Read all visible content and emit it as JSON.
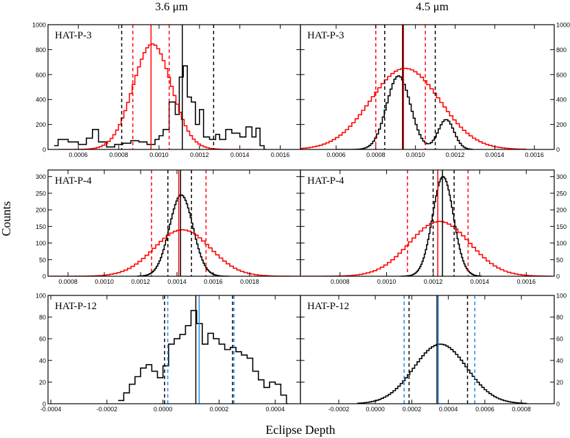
{
  "figure": {
    "column_titles": [
      "3.6 μm",
      "4.5 μm"
    ],
    "ylabel": "Counts",
    "xlabel": "Eclipse Depth"
  },
  "colors": {
    "black": "#000000",
    "red": "#ff0000",
    "blue": "#1e88e5"
  },
  "chart_data": [
    {
      "type": "histogram",
      "planet": "HAT-P-3",
      "band": "3.6 μm",
      "xlim": [
        0.00045,
        0.0017
      ],
      "ylim": [
        0,
        1000
      ],
      "xticks": [
        "0.0006",
        "0.0008",
        "0.0010",
        "0.0012",
        "0.0014",
        "0.0016"
      ],
      "yticks": [
        "0",
        "200",
        "400",
        "600",
        "800",
        "1000"
      ],
      "series": [
        {
          "color": "black",
          "style": "step",
          "x": [
            0.00048,
            0.0005,
            0.00055,
            0.0006,
            0.00064,
            0.00067,
            0.0007,
            0.00074,
            0.00078,
            0.00082,
            0.00086,
            0.0009,
            0.00094,
            0.00098,
            0.001,
            0.00102,
            0.00105,
            0.00108,
            0.0011,
            0.00112,
            0.00114,
            0.00116,
            0.00118,
            0.0012,
            0.00122,
            0.00125,
            0.00128,
            0.0013,
            0.00133,
            0.00136,
            0.0014,
            0.00143,
            0.00146,
            0.00148,
            0.0015,
            0.00152
          ],
          "y": [
            30,
            80,
            60,
            40,
            90,
            160,
            60,
            20,
            40,
            50,
            70,
            60,
            40,
            80,
            110,
            160,
            380,
            280,
            580,
            670,
            420,
            380,
            200,
            320,
            100,
            80,
            120,
            80,
            160,
            130,
            100,
            180,
            100,
            170,
            30,
            0
          ]
        },
        {
          "color": "red",
          "style": "step",
          "gaussian": {
            "mu": 0.00096,
            "sigma": 9.5e-05,
            "peak": 845,
            "range": [
              0.0005,
              0.00145
            ]
          }
        }
      ],
      "vlines": [
        {
          "x": 0.000815,
          "color": "black",
          "style": "dashed"
        },
        {
          "x": 0.001115,
          "color": "black",
          "style": "solid"
        },
        {
          "x": 0.00127,
          "color": "black",
          "style": "dashed"
        },
        {
          "x": 0.00087,
          "color": "red",
          "style": "dashed"
        },
        {
          "x": 0.00096,
          "color": "red",
          "style": "solid"
        },
        {
          "x": 0.00105,
          "color": "red",
          "style": "dashed"
        }
      ]
    },
    {
      "type": "histogram",
      "planet": "HAT-P-3",
      "band": "4.5 μm",
      "xlim": [
        0.00042,
        0.0017
      ],
      "ylim": [
        0,
        1000
      ],
      "xticks": [
        "0.0006",
        "0.0008",
        "0.0010",
        "0.0012",
        "0.0014",
        "0.0016"
      ],
      "yticks": [
        "0",
        "200",
        "400",
        "600",
        "800",
        "1000"
      ],
      "series": [
        {
          "color": "black",
          "style": "step",
          "gaussian_mix": [
            {
              "mu": 0.00091,
              "sigma": 6e-05,
              "peak": 590
            },
            {
              "mu": 0.00115,
              "sigma": 4e-05,
              "peak": 240
            }
          ],
          "range": [
            0.0006,
            0.00128
          ]
        },
        {
          "color": "red",
          "style": "step",
          "gaussian": {
            "mu": 0.00094,
            "sigma": 0.000175,
            "peak": 650,
            "range": [
              0.0004,
              0.00155
            ]
          }
        }
      ],
      "vlines": [
        {
          "x": 0.000845,
          "color": "black",
          "style": "dashed"
        },
        {
          "x": 0.000935,
          "color": "black",
          "style": "solid"
        },
        {
          "x": 0.0011,
          "color": "black",
          "style": "dashed"
        },
        {
          "x": 0.0008,
          "color": "red",
          "style": "dashed"
        },
        {
          "x": 0.00094,
          "color": "red",
          "style": "solid"
        },
        {
          "x": 0.00105,
          "color": "red",
          "style": "dashed"
        }
      ]
    },
    {
      "type": "histogram",
      "planet": "HAT-P-4",
      "band": "3.6 μm",
      "xlim": [
        0.00069,
        0.00208
      ],
      "ylim": [
        0,
        320
      ],
      "xticks": [
        "0.0008",
        "0.0010",
        "0.0012",
        "0.0014",
        "0.0016",
        "0.0018"
      ],
      "yticks": [
        "0",
        "50",
        "100",
        "150",
        "200",
        "250",
        "300"
      ],
      "series": [
        {
          "color": "black",
          "style": "step",
          "gaussian": {
            "mu": 0.00142,
            "sigma": 6.5e-05,
            "peak": 245,
            "range": [
              0.00118,
              0.00168
            ]
          }
        },
        {
          "color": "red",
          "style": "step",
          "gaussian": {
            "mu": 0.00142,
            "sigma": 0.000155,
            "peak": 140,
            "range": [
              0.0007,
              0.00206
            ]
          }
        }
      ],
      "vlines": [
        {
          "x": 0.00135,
          "color": "black",
          "style": "dashed"
        },
        {
          "x": 0.00142,
          "color": "black",
          "style": "solid"
        },
        {
          "x": 0.00148,
          "color": "black",
          "style": "dashed"
        },
        {
          "x": 0.00126,
          "color": "red",
          "style": "dashed"
        },
        {
          "x": 0.00141,
          "color": "red",
          "style": "solid"
        },
        {
          "x": 0.00156,
          "color": "red",
          "style": "dashed"
        }
      ]
    },
    {
      "type": "histogram",
      "planet": "HAT-P-4",
      "band": "4.5 μm",
      "xlim": [
        0.00063,
        0.00172
      ],
      "ylim": [
        0,
        320
      ],
      "xticks": [
        "0.0008",
        "0.0010",
        "0.0012",
        "0.0014",
        "0.0016"
      ],
      "yticks": [
        "0",
        "50",
        "100",
        "150",
        "200",
        "250",
        "300"
      ],
      "series": [
        {
          "color": "black",
          "style": "step",
          "gaussian": {
            "mu": 0.00124,
            "sigma": 4.5e-05,
            "peak": 300,
            "range": [
              0.00106,
              0.0014
            ]
          }
        },
        {
          "color": "red",
          "style": "step",
          "gaussian": {
            "mu": 0.00122,
            "sigma": 0.00013,
            "peak": 165,
            "range": [
              0.00064,
              0.0017
            ]
          }
        }
      ],
      "vlines": [
        {
          "x": 0.0012,
          "color": "black",
          "style": "dashed"
        },
        {
          "x": 0.00124,
          "color": "black",
          "style": "solid"
        },
        {
          "x": 0.00129,
          "color": "black",
          "style": "dashed"
        },
        {
          "x": 0.00109,
          "color": "red",
          "style": "dashed"
        },
        {
          "x": 0.00122,
          "color": "red",
          "style": "solid"
        },
        {
          "x": 0.00135,
          "color": "red",
          "style": "dashed"
        }
      ]
    },
    {
      "type": "histogram",
      "planet": "HAT-P-12",
      "band": "3.6 μm",
      "xlim": [
        -0.00041,
        0.00049
      ],
      "ylim": [
        0,
        100
      ],
      "xticks": [
        "-0.0004",
        "-0.0002",
        "0.0000",
        "0.0002",
        "0.0004"
      ],
      "yticks": [
        "0",
        "20",
        "40",
        "60",
        "80",
        "100"
      ],
      "series": [
        {
          "color": "black",
          "style": "step",
          "x": [
            -0.00016,
            -0.00014,
            -0.00012,
            -0.0001,
            -8e-05,
            -6e-05,
            -4e-05,
            -2e-05,
            0,
            2e-05,
            4e-05,
            6e-05,
            8e-05,
            0.0001,
            0.00012,
            0.00014,
            0.00016,
            0.00018,
            0.0002,
            0.00022,
            0.00024,
            0.00026,
            0.00028,
            0.0003,
            0.00032,
            0.00034,
            0.00036,
            0.00038,
            0.0004,
            0.00042,
            0.00044
          ],
          "y": [
            3,
            10,
            18,
            25,
            33,
            36,
            30,
            24,
            35,
            55,
            60,
            64,
            72,
            86,
            74,
            55,
            65,
            60,
            55,
            50,
            52,
            48,
            45,
            42,
            30,
            22,
            15,
            20,
            18,
            8,
            0
          ]
        }
      ],
      "vlines": [
        {
          "x": 5.5e-06,
          "color": "black",
          "style": "dashed"
        },
        {
          "x": 0.000117,
          "color": "black",
          "style": "solid"
        },
        {
          "x": 0.000248,
          "color": "black",
          "style": "dashed"
        },
        {
          "x": 1.7e-05,
          "color": "blue",
          "style": "dashed"
        },
        {
          "x": 0.000129,
          "color": "blue",
          "style": "solid"
        },
        {
          "x": 0.000253,
          "color": "blue",
          "style": "dashed"
        }
      ]
    },
    {
      "type": "histogram",
      "planet": "HAT-P-12",
      "band": "4.5 μm",
      "xlim": [
        -0.00041,
        0.00098
      ],
      "ylim": [
        0,
        100
      ],
      "xticks": [
        "-0.0002",
        "0.0000",
        "0.0002",
        "0.0004",
        "0.0006",
        "0.0008"
      ],
      "yticks": [
        "0",
        "20",
        "40",
        "60",
        "80",
        "100"
      ],
      "series": [
        {
          "color": "black",
          "style": "step",
          "gaussian": {
            "mu": 0.00035,
            "sigma": 0.000145,
            "peak": 55,
            "range": [
              -0.0001,
              0.00082
            ]
          }
        }
      ],
      "vlines": [
        {
          "x": 0.000185,
          "color": "black",
          "style": "dashed"
        },
        {
          "x": 0.000338,
          "color": "black",
          "style": "solid"
        },
        {
          "x": 0.000505,
          "color": "black",
          "style": "dashed"
        },
        {
          "x": 0.000158,
          "color": "blue",
          "style": "dashed"
        },
        {
          "x": 0.000345,
          "color": "blue",
          "style": "solid"
        },
        {
          "x": 0.000545,
          "color": "blue",
          "style": "dashed"
        }
      ]
    }
  ]
}
